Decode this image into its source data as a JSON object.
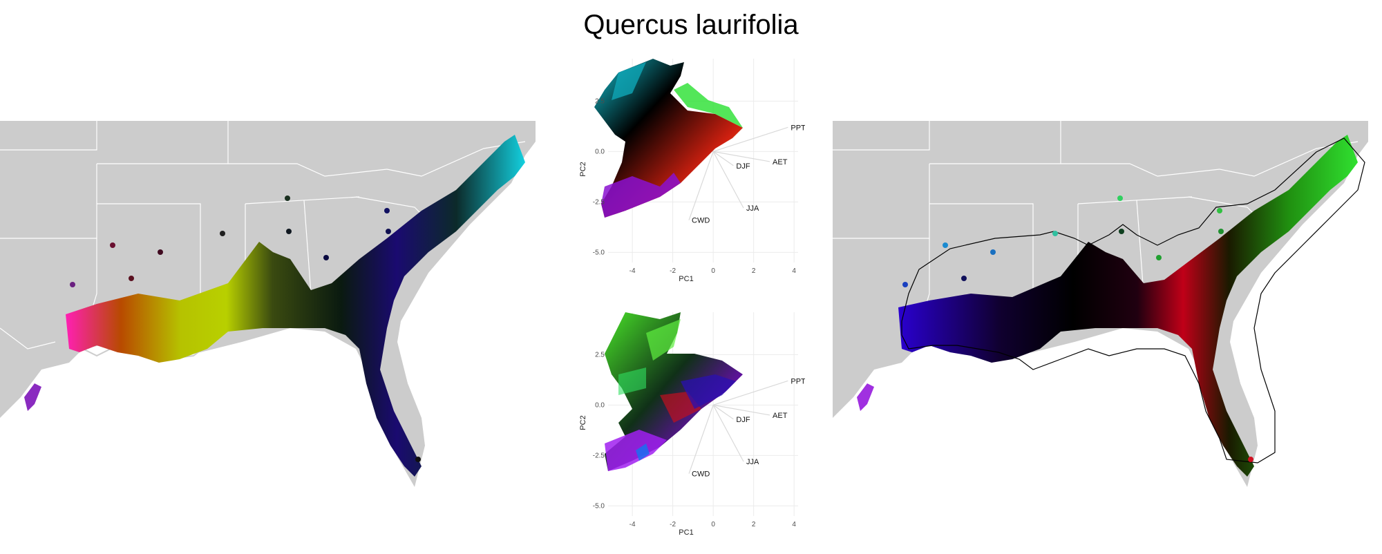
{
  "title": "Quercus laurifolia",
  "chart_data": [
    {
      "type": "map",
      "panel": "left",
      "description_colors": [
        "#ff1fb4",
        "#c8e000",
        "#2fd03f",
        "#120a8a",
        "#0fc6d6",
        "#7a2bb0"
      ]
    },
    {
      "type": "scatter",
      "panel": "pca-top",
      "xlabel": "PC1",
      "ylabel": "PC2",
      "xlim": [
        -5.2,
        4.2
      ],
      "ylim": [
        -5.5,
        4.6
      ],
      "xticks": [
        "-4",
        "-2",
        "0",
        "2",
        "4"
      ],
      "yticks": [
        "2.5",
        "0.0",
        "-2.5",
        "-5.0"
      ],
      "vectors": [
        {
          "name": "PPT",
          "x": 3.7,
          "y": 1.2
        },
        {
          "name": "AET",
          "x": 2.8,
          "y": -0.5
        },
        {
          "name": "DJF",
          "x": 1.0,
          "y": -0.7
        },
        {
          "name": "JJA",
          "x": 1.5,
          "y": -2.8
        },
        {
          "name": "CWD",
          "x": -1.2,
          "y": -3.4
        }
      ],
      "grid": true
    },
    {
      "type": "scatter",
      "panel": "pca-bottom",
      "xlabel": "PC1",
      "ylabel": "PC2",
      "xlim": [
        -5.2,
        4.2
      ],
      "ylim": [
        -5.5,
        4.6
      ],
      "xticks": [
        "-4",
        "-2",
        "0",
        "2",
        "4"
      ],
      "yticks": [
        "2.5",
        "0.0",
        "-2.5",
        "-5.0"
      ],
      "vectors": [
        {
          "name": "PPT",
          "x": 3.7,
          "y": 1.2
        },
        {
          "name": "AET",
          "x": 2.8,
          "y": -0.5
        },
        {
          "name": "DJF",
          "x": 1.0,
          "y": -0.7
        },
        {
          "name": "JJA",
          "x": 1.5,
          "y": -2.8
        },
        {
          "name": "CWD",
          "x": -1.2,
          "y": -3.4
        }
      ],
      "grid": true
    },
    {
      "type": "map",
      "panel": "right",
      "description_colors": [
        "#2a00c8",
        "#000000",
        "#ff0f2a",
        "#2ae030",
        "#b000ff",
        "#19b6c8"
      ]
    }
  ]
}
